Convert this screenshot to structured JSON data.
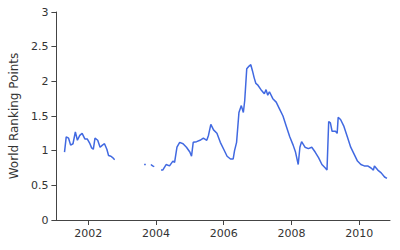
{
  "chart_data": {
    "type": "line",
    "ylabel": "World Ranking Points",
    "color": "#4169e1",
    "grid": false,
    "xlim": [
      2001.06,
      2010.91
    ],
    "xticks": [
      2002,
      2004,
      2006,
      2008,
      2010
    ],
    "ylim": [
      0,
      3
    ],
    "yticks": [
      0,
      0.5,
      1,
      1.5,
      2,
      2.5,
      3
    ],
    "x": [
      2001.3,
      2001.35,
      2001.42,
      2001.48,
      2001.55,
      2001.62,
      2001.68,
      2001.75,
      2001.82,
      2001.9,
      2001.97,
      2002.05,
      2002.1,
      2002.15,
      2002.2,
      2002.28,
      2002.35,
      2002.42,
      2002.48,
      2002.55,
      2002.6,
      2002.67,
      2002.72,
      2002.78,
      2003.2,
      2003.65,
      2003.7,
      2003.78,
      2003.85,
      2003.9,
      2003.95,
      2004.05,
      2004.15,
      2004.2,
      2004.3,
      2004.4,
      2004.5,
      2004.55,
      2004.62,
      2004.7,
      2004.8,
      2004.9,
      2005.0,
      2005.05,
      2005.1,
      2005.2,
      2005.3,
      2005.4,
      2005.5,
      2005.55,
      2005.62,
      2005.7,
      2005.8,
      2005.9,
      2006.0,
      2006.1,
      2006.2,
      2006.28,
      2006.32,
      2006.38,
      2006.45,
      2006.52,
      2006.58,
      2006.62,
      2006.68,
      2006.75,
      2006.8,
      2006.85,
      2006.9,
      2006.95,
      2007.0,
      2007.1,
      2007.2,
      2007.25,
      2007.3,
      2007.35,
      2007.45,
      2007.55,
      2007.65,
      2007.75,
      2007.85,
      2007.95,
      2008.05,
      2008.12,
      2008.2,
      2008.25,
      2008.3,
      2008.4,
      2008.5,
      2008.6,
      2008.7,
      2008.8,
      2008.9,
      2009.0,
      2009.05,
      2009.1,
      2009.15,
      2009.2,
      2009.3,
      2009.35,
      2009.38,
      2009.45,
      2009.55,
      2009.65,
      2009.75,
      2009.85,
      2009.95,
      2010.05,
      2010.15,
      2010.25,
      2010.35,
      2010.42,
      2010.45,
      2010.55,
      2010.65,
      2010.75,
      2010.82
    ],
    "values": [
      0.98,
      1.2,
      1.18,
      1.08,
      1.1,
      1.27,
      1.15,
      1.22,
      1.25,
      1.17,
      1.17,
      1.1,
      1.04,
      1.02,
      1.18,
      1.15,
      1.05,
      1.08,
      1.1,
      1.02,
      0.93,
      0.92,
      0.9,
      0.87,
      null,
      0.8,
      0.8,
      null,
      0.8,
      0.78,
      0.77,
      null,
      0.72,
      0.72,
      0.8,
      0.78,
      0.85,
      0.83,
      1.05,
      1.12,
      1.1,
      1.05,
      0.98,
      0.92,
      1.12,
      1.13,
      1.15,
      1.18,
      1.15,
      1.22,
      1.38,
      1.3,
      1.25,
      1.12,
      1.02,
      0.92,
      0.88,
      0.88,
      1.0,
      1.12,
      1.55,
      1.65,
      1.55,
      1.72,
      2.18,
      2.22,
      2.24,
      2.15,
      2.05,
      1.97,
      1.95,
      1.88,
      1.82,
      1.88,
      1.8,
      1.85,
      1.75,
      1.7,
      1.6,
      1.5,
      1.35,
      1.2,
      1.08,
      0.98,
      0.8,
      1.05,
      1.13,
      1.05,
      1.03,
      1.05,
      0.98,
      0.9,
      0.8,
      0.75,
      0.72,
      1.42,
      1.4,
      1.28,
      1.28,
      1.25,
      1.48,
      1.45,
      1.35,
      1.2,
      1.05,
      0.95,
      0.85,
      0.8,
      0.78,
      0.78,
      0.75,
      0.72,
      0.78,
      0.72,
      0.68,
      0.62,
      0.6
    ]
  }
}
